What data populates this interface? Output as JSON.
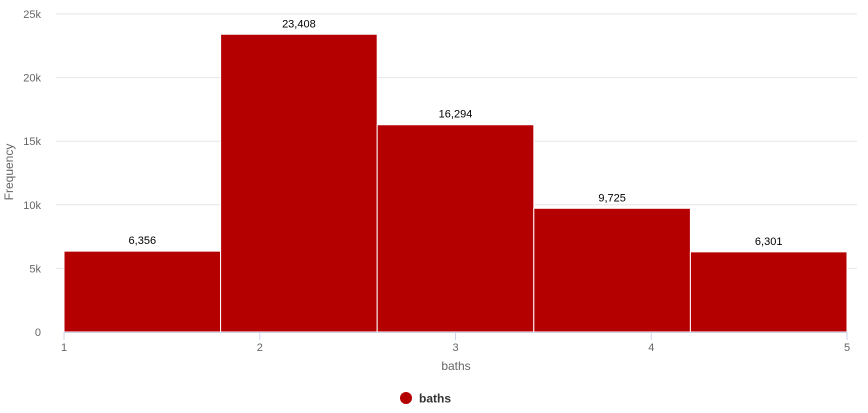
{
  "chart_data": {
    "type": "bar",
    "subtype": "histogram",
    "x": {
      "label": "baths",
      "bin_edges": [
        1,
        1.8,
        2.6,
        3.4,
        4.2,
        5
      ],
      "ticks": [
        1,
        2,
        3,
        4,
        5
      ],
      "range": [
        1,
        5
      ]
    },
    "y": {
      "label": "Frequency",
      "ticks": [
        0,
        5000,
        10000,
        15000,
        20000,
        25000
      ],
      "tick_labels": [
        "0",
        "5k",
        "10k",
        "15k",
        "20k",
        "25k"
      ],
      "range": [
        0,
        25000
      ]
    },
    "values": [
      6356,
      23408,
      16294,
      9725,
      6301
    ],
    "value_labels": [
      "6,356",
      "23,408",
      "16,294",
      "9,725",
      "6,301"
    ],
    "series": [
      {
        "name": "baths",
        "color": "#b50000"
      }
    ],
    "legend": {
      "position": "bottom-center",
      "items": [
        {
          "label": "baths",
          "marker": "circle",
          "color": "#b50000"
        }
      ]
    },
    "grid": {
      "y": true,
      "x": false,
      "color": "#e6e6e6"
    }
  }
}
